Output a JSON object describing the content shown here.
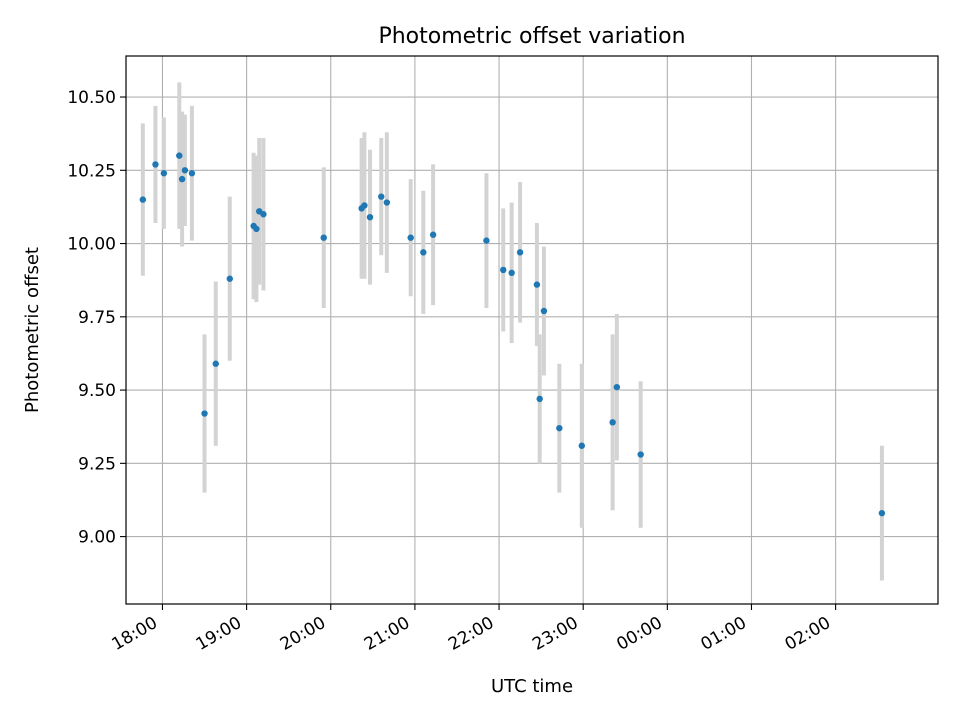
{
  "chart_data": {
    "type": "scatter",
    "title": "Photometric offset variation",
    "xlabel": "UTC time",
    "ylabel": "Photometric offset",
    "x_unit": "UTC clock time (HH:MM)",
    "xlim": [
      "17:34",
      "03:13"
    ],
    "ylim": [
      8.77,
      10.64
    ],
    "xticks": [
      "18:00",
      "19:00",
      "20:00",
      "21:00",
      "22:00",
      "23:00",
      "00:00",
      "01:00",
      "02:00"
    ],
    "yticks": [
      "9.00",
      "9.25",
      "9.50",
      "9.75",
      "10.00",
      "10.25",
      "10.50"
    ],
    "grid": true,
    "legend": "none",
    "point_color": "#1f77b4",
    "errorbar_color": "#d3d3d3",
    "series": [
      {
        "points": [
          {
            "t": "17:46",
            "y": 10.15,
            "err": 0.26
          },
          {
            "t": "17:55",
            "y": 10.27,
            "err": 0.2
          },
          {
            "t": "18:01",
            "y": 10.24,
            "err": 0.19
          },
          {
            "t": "18:12",
            "y": 10.3,
            "err": 0.25
          },
          {
            "t": "18:14",
            "y": 10.22,
            "err": 0.23
          },
          {
            "t": "18:16",
            "y": 10.25,
            "err": 0.19
          },
          {
            "t": "18:21",
            "y": 10.24,
            "err": 0.23
          },
          {
            "t": "18:30",
            "y": 9.42,
            "err": 0.27
          },
          {
            "t": "18:38",
            "y": 9.59,
            "err": 0.28
          },
          {
            "t": "18:48",
            "y": 9.88,
            "err": 0.28
          },
          {
            "t": "19:05",
            "y": 10.06,
            "err": 0.25
          },
          {
            "t": "19:07",
            "y": 10.05,
            "err": 0.25
          },
          {
            "t": "19:09",
            "y": 10.11,
            "err": 0.25
          },
          {
            "t": "19:12",
            "y": 10.1,
            "err": 0.26
          },
          {
            "t": "19:55",
            "y": 10.02,
            "err": 0.24
          },
          {
            "t": "20:22",
            "y": 10.12,
            "err": 0.24
          },
          {
            "t": "20:24",
            "y": 10.13,
            "err": 0.25
          },
          {
            "t": "20:28",
            "y": 10.09,
            "err": 0.23
          },
          {
            "t": "20:36",
            "y": 10.16,
            "err": 0.2
          },
          {
            "t": "20:40",
            "y": 10.14,
            "err": 0.24
          },
          {
            "t": "20:57",
            "y": 10.02,
            "err": 0.2
          },
          {
            "t": "21:06",
            "y": 9.97,
            "err": 0.21
          },
          {
            "t": "21:13",
            "y": 10.03,
            "err": 0.24
          },
          {
            "t": "21:51",
            "y": 10.01,
            "err": 0.23
          },
          {
            "t": "22:03",
            "y": 9.91,
            "err": 0.21
          },
          {
            "t": "22:09",
            "y": 9.9,
            "err": 0.24
          },
          {
            "t": "22:15",
            "y": 9.97,
            "err": 0.24
          },
          {
            "t": "22:27",
            "y": 9.86,
            "err": 0.21
          },
          {
            "t": "22:29",
            "y": 9.47,
            "err": 0.22
          },
          {
            "t": "22:32",
            "y": 9.77,
            "err": 0.22
          },
          {
            "t": "22:43",
            "y": 9.37,
            "err": 0.22
          },
          {
            "t": "22:59",
            "y": 9.31,
            "err": 0.28
          },
          {
            "t": "23:21",
            "y": 9.39,
            "err": 0.3
          },
          {
            "t": "23:24",
            "y": 9.51,
            "err": 0.25
          },
          {
            "t": "23:41",
            "y": 9.28,
            "err": 0.25
          },
          {
            "t": "02:33",
            "y": 9.08,
            "err": 0.23
          }
        ]
      }
    ]
  }
}
